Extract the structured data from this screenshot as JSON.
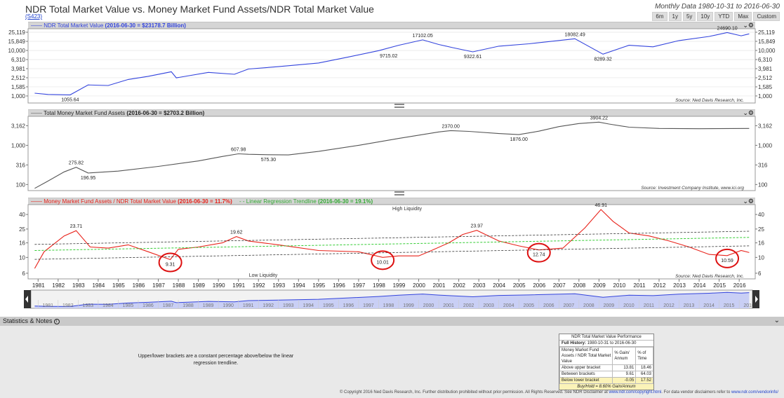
{
  "header": {
    "title": "NDR Total Market Value vs. Money Market Fund Assets/NDR Total Market Value",
    "code": "(S423)",
    "date_range": "Monthly Data 1980-10-31 to 2016-06-30",
    "range_buttons": [
      "6m",
      "1y",
      "5y",
      "10y",
      "YTD",
      "Max",
      "Custom"
    ]
  },
  "panels": {
    "p1": {
      "legend_name": "NDR Total Market Value",
      "legend_value": "(2016-06-30 = $23178.7 Billion)",
      "source": "Source:   Ned Davis Research, Inc."
    },
    "p2": {
      "legend_name": "Total Money Market Fund Assets",
      "legend_value": "(2016-06-30 = $2703.2 Billion)",
      "source": "Source:   Investment Company Institute, www.ici.org"
    },
    "p3": {
      "legend_name": "Money Market Fund Assets / NDR Total Market Value",
      "legend_value": "(2016-06-30 = 11.7%)",
      "legend2_name": "Linear Regression Trendline",
      "legend2_value": "(2016-06-30 = 19.1%)",
      "source": "Source:   Ned Davis Research, Inc.",
      "high_label": "High Liquidity",
      "low_label": "Low Liquidity"
    }
  },
  "statistics": {
    "label": "Statistics & Notes",
    "note": "Upper/lower brackets are a constant percentage above/below the linear regression trendline.",
    "table": {
      "title": "NDR Total Market Value Performance",
      "full_history_label": "Full History:",
      "full_history_range": "1980-10-31 to 2016-06-30",
      "col1": "Money Market Fund Assets / NDR Total Market Value",
      "col2": "% Gain/ Annum",
      "col3": "% of Time",
      "rows": [
        {
          "label": "Above upper bracket",
          "gain": "13.81",
          "time": "18.46"
        },
        {
          "label": "Between brackets",
          "gain": "9.61",
          "time": "64.03"
        },
        {
          "label": "Below lower bracket",
          "gain": "-0.05",
          "time": "17.52"
        }
      ],
      "footnote": "Buy/Hold = 8.60% Gain/Annum"
    }
  },
  "copyright": {
    "text": "© Copyright 2016 Ned Davis Research, Inc. Further distribution prohibited without prior permission. All Rights Reserved. See NDR Disclaimer at",
    "link1": "www.ndr.com/copyright.html",
    "text2": ". For data vendor disclaimers refer to",
    "link2": "www.ndr.com/vendorinfo/"
  },
  "colors": {
    "p1_line": "#3344dd",
    "p2_line": "#555555",
    "p3_line": "#e8221a",
    "trend": "#33cc33",
    "bracket": "#333333",
    "circle": "#dd1111"
  },
  "chart_data": [
    {
      "type": "line",
      "scale": "log",
      "yticks": [
        1000,
        1585,
        2512,
        3981,
        6310,
        10000,
        15849,
        25119
      ],
      "ytick_labels": [
        "1,000",
        "1,585",
        "2,512",
        "3,981",
        "6,310",
        "10,000",
        "15,849",
        "25,119"
      ],
      "ylim": [
        700,
        30000
      ],
      "series": [
        {
          "name": "NDR Total Market Value",
          "x": [
            1980.83,
            1981.5,
            1982.6,
            1983.5,
            1984.5,
            1985.5,
            1986.5,
            1987.65,
            1987.9,
            1989.5,
            1990.8,
            1991.5,
            1993,
            1995,
            1996.5,
            1998,
            1999,
            2000.2,
            2001,
            2001.7,
            2002.7,
            2004,
            2005.5,
            2007.8,
            2009.2,
            2010.5,
            2011.7,
            2013,
            2014.5,
            2015.4,
            2016.1,
            2016.5
          ],
          "y": [
            1150,
            1080,
            1055.64,
            1750,
            1700,
            2300,
            2700,
            3400,
            2500,
            3300,
            3000,
            3900,
            4400,
            5300,
            7200,
            9900,
            13000,
            17102.05,
            13500,
            11500,
            9322.61,
            12400,
            14000,
            18082.49,
            8289.32,
            13000,
            12000,
            16500,
            20300,
            24690.1,
            21000,
            23178.7
          ]
        }
      ],
      "annotations": [
        {
          "x": 1982.6,
          "y": 1055.64,
          "label": "1055.64",
          "pos": "below"
        },
        {
          "x": 1998.5,
          "y": 9715.02,
          "label": "9715.02",
          "pos": "below"
        },
        {
          "x": 2000.2,
          "y": 17102.05,
          "label": "17102.05",
          "pos": "above"
        },
        {
          "x": 2002.7,
          "y": 9322.61,
          "label": "9322.61",
          "pos": "below"
        },
        {
          "x": 2007.8,
          "y": 18082.49,
          "label": "18082.49",
          "pos": "above"
        },
        {
          "x": 2009.2,
          "y": 8289.32,
          "label": "8289.32",
          "pos": "below"
        },
        {
          "x": 2015.4,
          "y": 24690.1,
          "label": "24690.10",
          "pos": "above"
        }
      ]
    },
    {
      "type": "line",
      "scale": "log",
      "yticks": [
        100,
        316,
        1000,
        3162
      ],
      "ytick_labels": [
        "100",
        "316",
        "1,000",
        "3,162"
      ],
      "ylim": [
        70,
        5500
      ],
      "series": [
        {
          "name": "Total Money Market Fund Assets",
          "x": [
            1980.83,
            1981.4,
            1982.3,
            1982.9,
            1983.5,
            1985,
            1987,
            1989,
            1990.2,
            1991,
            1991.5,
            1992.5,
            1993.5,
            1995,
            1997,
            1999,
            2001,
            2001.6,
            2002.5,
            2004,
            2005,
            2006,
            2007,
            2008,
            2009,
            2009.5,
            2010.5,
            2012,
            2014,
            2016.5
          ],
          "y": [
            80,
            115,
            210,
            275.82,
            196.95,
            220,
            290,
            400,
            520,
            607.98,
            590,
            575.3,
            570,
            700,
            1000,
            1500,
            2200,
            2370.0,
            2270,
            2000,
            1876.0,
            2300,
            3000,
            3600,
            3904.22,
            3500,
            2900,
            2700,
            2650,
            2703.2
          ]
        }
      ],
      "annotations": [
        {
          "x": 1982.9,
          "y": 275.82,
          "label": "275.82",
          "pos": "above"
        },
        {
          "x": 1983.5,
          "y": 196.95,
          "label": "196.95",
          "pos": "below"
        },
        {
          "x": 1991,
          "y": 607.98,
          "label": "607.98",
          "pos": "above"
        },
        {
          "x": 1992.5,
          "y": 575.3,
          "label": "575.30",
          "pos": "below"
        },
        {
          "x": 2001.6,
          "y": 2370.0,
          "label": "2370.00",
          "pos": "above"
        },
        {
          "x": 2005,
          "y": 1876.0,
          "label": "1876.00",
          "pos": "below"
        },
        {
          "x": 2009,
          "y": 3904.22,
          "label": "3904.22",
          "pos": "above"
        }
      ]
    },
    {
      "type": "line",
      "scale": "log",
      "yticks": [
        6,
        10,
        16,
        25,
        40
      ],
      "ytick_labels": [
        "6",
        "10",
        "16",
        "25",
        "40"
      ],
      "ylim": [
        5,
        55
      ],
      "xlim": [
        1980.5,
        2016.8
      ],
      "x_tick_labels": [
        "1981",
        "1982",
        "1983",
        "1984",
        "1985",
        "1986",
        "1987",
        "1988",
        "1989",
        "1990",
        "1991",
        "1992",
        "1993",
        "1994",
        "1995",
        "1996",
        "1997",
        "1998",
        "1999",
        "2000",
        "2001",
        "2002",
        "2003",
        "2004",
        "2005",
        "2006",
        "2007",
        "2008",
        "2009",
        "2010",
        "2011",
        "2012",
        "2013",
        "2014",
        "2015",
        "2016"
      ],
      "series": [
        {
          "name": "Money Market Fund Assets / NDR Total Market Value",
          "x": [
            1980.83,
            1981.3,
            1982.3,
            1982.9,
            1983.6,
            1984.5,
            1985.5,
            1986.5,
            1987.6,
            1988,
            1989,
            1990.2,
            1990.9,
            1991.5,
            1993,
            1995,
            1997,
            1998.2,
            1999,
            2000,
            2000.5,
            2001.5,
            2002.2,
            2002.9,
            2004,
            2005,
            2006,
            2007.2,
            2008.3,
            2009.1,
            2009.7,
            2010.5,
            2011.5,
            2012.5,
            2013.5,
            2014.5,
            2015.4,
            2016.1,
            2016.5
          ],
          "y": [
            7,
            12,
            20,
            23.71,
            14,
            13.5,
            15,
            12,
            9.31,
            13,
            14,
            16,
            19.62,
            17,
            15,
            12.5,
            12,
            10.01,
            10.5,
            10.5,
            12,
            16,
            21,
            23.97,
            17,
            14.5,
            12.74,
            13.5,
            26,
            46.91,
            32,
            22,
            20,
            17,
            14,
            11,
            10.59,
            12.5,
            11.7
          ]
        },
        {
          "name": "Linear Regression Trendline",
          "x": [
            1980.83,
            2016.5
          ],
          "y": [
            12.5,
            19.1
          ]
        },
        {
          "name": "Upper bracket",
          "x": [
            1980.83,
            2016.5
          ],
          "y": [
            15.2,
            23.3
          ]
        },
        {
          "name": "Lower bracket",
          "x": [
            1980.83,
            2016.5
          ],
          "y": [
            9.4,
            14.5
          ]
        }
      ],
      "annotations": [
        {
          "x": 1982.9,
          "y": 23.71,
          "label": "23.71",
          "pos": "above"
        },
        {
          "x": 1990.9,
          "y": 19.62,
          "label": "19.62",
          "pos": "above"
        },
        {
          "x": 2002.9,
          "y": 23.97,
          "label": "23.97",
          "pos": "above"
        },
        {
          "x": 2009.1,
          "y": 46.91,
          "label": "46.91",
          "pos": "above"
        },
        {
          "x": 1987.6,
          "y": 9.31,
          "label": "9.31",
          "pos": "below",
          "circle": true
        },
        {
          "x": 1998.2,
          "y": 10.01,
          "label": "10.01",
          "pos": "below",
          "circle": true
        },
        {
          "x": 2006,
          "y": 12.74,
          "label": "12.74",
          "pos": "below",
          "circle": true
        },
        {
          "x": 2015.4,
          "y": 10.59,
          "label": "10.59",
          "pos": "below",
          "circle": true
        }
      ]
    }
  ]
}
